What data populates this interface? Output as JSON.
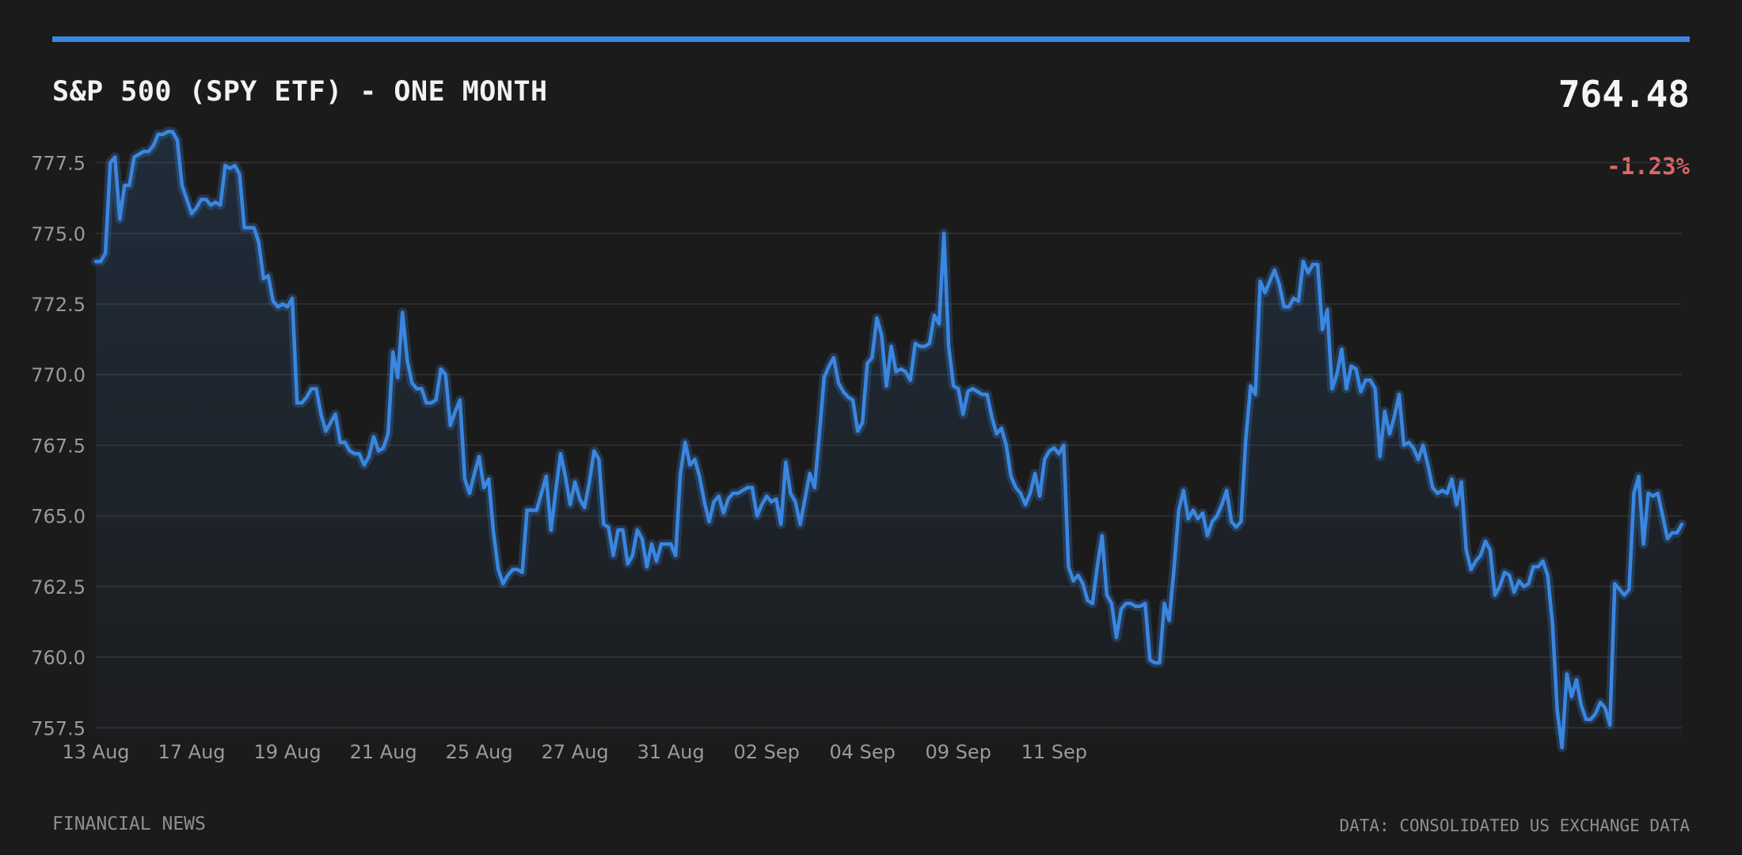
{
  "header": {
    "title": "S&P 500 (SPY ETF) - ONE MONTH",
    "price": "764.48",
    "change": "-1.23%"
  },
  "footer": {
    "source_label": "FINANCIAL NEWS",
    "data_credit": "DATA: CONSOLIDATED US EXCHANGE DATA"
  },
  "colors": {
    "background": "#1b1b1b",
    "accent": "#3a86e0",
    "line": "#3a86e0",
    "negative": "#e06666",
    "grid": "#333333",
    "tick_text": "#9a9a9a"
  },
  "chart_data": {
    "type": "area",
    "title": "S&P 500 (SPY ETF) - ONE MONTH",
    "xlabel": "",
    "ylabel": "",
    "ylim": [
      757.2,
      779.0
    ],
    "yticks": [
      757.5,
      760.0,
      762.5,
      765.0,
      767.5,
      770.0,
      772.5,
      775.0,
      777.5
    ],
    "ytick_labels": [
      "757.5",
      "760.0",
      "762.5",
      "765.0",
      "767.5",
      "770.0",
      "772.5",
      "775.0",
      "777.5"
    ],
    "grid": true,
    "x_labels": [
      "13 Aug",
      "17 Aug",
      "19 Aug",
      "21 Aug",
      "25 Aug",
      "27 Aug",
      "31 Aug",
      "02 Sep",
      "04 Sep",
      "09 Sep",
      "11 Sep"
    ],
    "x_label_indices": [
      0,
      20,
      40,
      60,
      80,
      100,
      120,
      140,
      160,
      180,
      200
    ],
    "values": [
      774.0,
      774.0,
      774.3,
      777.5,
      777.7,
      775.5,
      776.7,
      776.7,
      777.7,
      777.8,
      777.9,
      777.9,
      778.1,
      778.5,
      778.5,
      778.6,
      778.6,
      778.3,
      776.7,
      776.2,
      775.7,
      775.9,
      776.2,
      776.2,
      776.0,
      776.1,
      776.0,
      777.4,
      777.3,
      777.4,
      777.1,
      775.2,
      775.2,
      775.2,
      774.7,
      773.4,
      773.5,
      772.6,
      772.4,
      772.5,
      772.4,
      772.7,
      769.0,
      769.0,
      769.2,
      769.5,
      769.5,
      768.6,
      768.0,
      768.3,
      768.6,
      767.6,
      767.6,
      767.3,
      767.2,
      767.2,
      766.8,
      767.1,
      767.8,
      767.3,
      767.4,
      767.9,
      770.8,
      769.9,
      772.2,
      770.5,
      769.7,
      769.5,
      769.5,
      769.0,
      769.0,
      769.1,
      770.2,
      770.0,
      768.2,
      768.7,
      769.1,
      766.3,
      765.8,
      766.5,
      767.1,
      766.0,
      766.3,
      764.4,
      763.1,
      762.6,
      762.9,
      763.1,
      763.1,
      763.0,
      765.2,
      765.2,
      765.2,
      765.8,
      766.4,
      764.5,
      765.9,
      767.2,
      766.4,
      765.4,
      766.2,
      765.6,
      765.3,
      766.2,
      767.3,
      767.0,
      764.7,
      764.6,
      763.6,
      764.5,
      764.5,
      763.3,
      763.6,
      764.5,
      764.2,
      763.2,
      764.0,
      763.4,
      764.0,
      764.0,
      764.0,
      763.6,
      766.5,
      767.6,
      766.8,
      767.0,
      766.4,
      765.5,
      764.8,
      765.5,
      765.7,
      765.1,
      765.6,
      765.8,
      765.8,
      765.9,
      766.0,
      766.0,
      765.0,
      765.4,
      765.7,
      765.5,
      765.6,
      764.7,
      766.9,
      765.8,
      765.5,
      764.7,
      765.6,
      766.5,
      766.0,
      767.9,
      769.9,
      770.3,
      770.6,
      769.7,
      769.4,
      769.2,
      769.1,
      768.0,
      768.3,
      770.4,
      770.6,
      772.0,
      771.4,
      769.6,
      771.0,
      770.1,
      770.2,
      770.1,
      769.8,
      771.1,
      771.0,
      771.0,
      771.1,
      772.1,
      771.8,
      775.0,
      771.0,
      769.6,
      769.5,
      768.6,
      769.4,
      769.5,
      769.4,
      769.3,
      769.3,
      768.5,
      767.9,
      768.1,
      767.5,
      766.4,
      766.0,
      765.8,
      765.4,
      765.8,
      766.5,
      765.7,
      767.0,
      767.3,
      767.4,
      767.2,
      767.5,
      763.2,
      762.7,
      762.9,
      762.6,
      762.0,
      761.9,
      763.2,
      764.3,
      762.2,
      761.9,
      760.7,
      761.7,
      761.9,
      761.9,
      761.8,
      761.8,
      761.9,
      759.9,
      759.8,
      759.8,
      761.9,
      761.3,
      763.1,
      765.2,
      765.9,
      764.9,
      765.2,
      764.9,
      765.1,
      764.3,
      764.8,
      765.0,
      765.4,
      765.9,
      764.8,
      764.6,
      764.8,
      767.7,
      769.6,
      769.3,
      773.3,
      772.9,
      773.3,
      773.7,
      773.2,
      772.4,
      772.4,
      772.7,
      772.6,
      774.0,
      773.6,
      773.9,
      773.9,
      771.6,
      772.3,
      769.5,
      770.0,
      770.9,
      769.5,
      770.3,
      770.2,
      769.4,
      769.8,
      769.8,
      769.5,
      767.1,
      768.7,
      767.9,
      768.5,
      769.3,
      767.5,
      767.6,
      767.4,
      767.0,
      767.5,
      766.8,
      766.0,
      765.8,
      765.9,
      765.8,
      766.3,
      765.4,
      766.2,
      763.8,
      763.1,
      763.4,
      763.6,
      764.1,
      763.8,
      762.2,
      762.5,
      763.0,
      762.9,
      762.3,
      762.7,
      762.5,
      762.6,
      763.2,
      763.2,
      763.4,
      762.9,
      761.2,
      758.1,
      756.8,
      759.4,
      758.6,
      759.2,
      758.3,
      757.8,
      757.8,
      758.0,
      758.4,
      758.2,
      757.6,
      762.6,
      762.4,
      762.2,
      762.4,
      765.8,
      766.4,
      764.0,
      765.8,
      765.7,
      765.8,
      765.0,
      764.2,
      764.4,
      764.4,
      764.7
    ]
  }
}
